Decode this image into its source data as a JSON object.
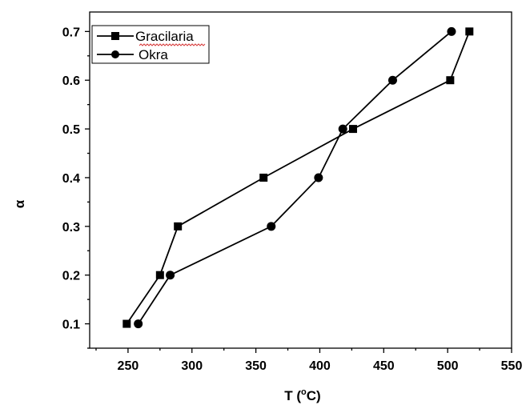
{
  "chart_data": {
    "type": "line",
    "xlabel_main": "T (",
    "xlabel_sup": "o",
    "xlabel_unit": "C)",
    "ylabel": "α",
    "xlim": [
      220,
      550
    ],
    "ylim": [
      0.05,
      0.74
    ],
    "xticks": [
      250,
      300,
      350,
      400,
      450,
      500,
      550
    ],
    "yticks": [
      0.1,
      0.2,
      0.3,
      0.4,
      0.5,
      0.6,
      0.7
    ],
    "ytick_labels": [
      "0.1",
      "0.2",
      "0.3",
      "0.4",
      "0.5",
      "0.6",
      "0.7"
    ],
    "grid": false,
    "legend_position": "top-left",
    "series": [
      {
        "name": "Gracilaria",
        "marker": "square",
        "color": "#000000",
        "x": [
          249,
          275,
          289,
          356,
          426,
          502,
          517
        ],
        "y": [
          0.1,
          0.2,
          0.3,
          0.4,
          0.5,
          0.6,
          0.7
        ]
      },
      {
        "name": "Okra",
        "marker": "circle",
        "color": "#000000",
        "x": [
          258,
          283,
          362,
          399,
          418,
          457,
          503
        ],
        "y": [
          0.1,
          0.2,
          0.3,
          0.4,
          0.5,
          0.6,
          0.7
        ]
      }
    ]
  }
}
